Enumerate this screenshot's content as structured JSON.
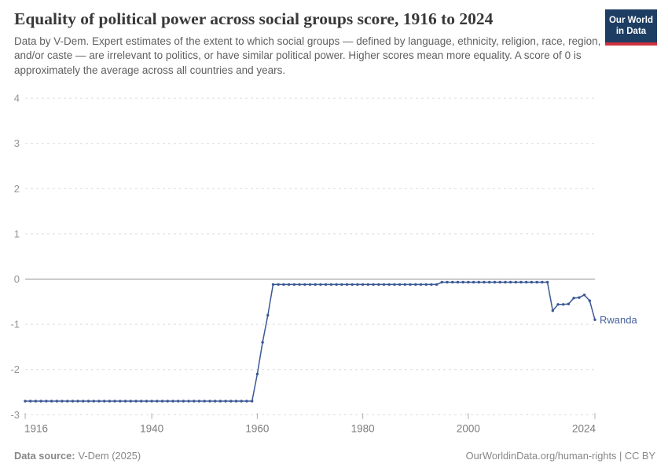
{
  "header": {
    "title": "Equality of political power across social groups score, 1916 to 2024",
    "subtitle": "Data by V-Dem. Expert estimates of the extent to which social groups — defined by language, ethnicity, religion, race, region, and/or caste — are irrelevant to politics, or have similar political power. Higher scores mean more equality. A score of 0 is approximately the average across all countries and years.",
    "logo": {
      "line1": "Our World",
      "line2": "in Data"
    }
  },
  "footer": {
    "source_label": "Data source:",
    "source_value": "V-Dem (2025)",
    "right_text": "OurWorldinData.org/human-rights | CC BY"
  },
  "colors": {
    "line": "#3a5795",
    "end_label": "#44619c",
    "grid": "#dcdcdc",
    "zero_line": "#8f8f8f",
    "y_axis_text": "#949494",
    "x_axis_text": "#7d7d7d",
    "tick_mark": "#adadad"
  },
  "chart_data": {
    "type": "line",
    "title": "Equality of political power across social groups score, 1916 to 2024",
    "xlabel": "",
    "ylabel": "",
    "xlim": [
      1916,
      2024
    ],
    "ylim": [
      -3,
      4
    ],
    "x_ticks": [
      1916,
      1940,
      1960,
      1980,
      2000,
      2024
    ],
    "y_ticks": [
      4,
      3,
      2,
      1,
      0,
      -1,
      -2,
      -3
    ],
    "grid": "horizontal-dashed",
    "legend_position": "end-of-line",
    "series": [
      {
        "name": "Rwanda",
        "points": [
          [
            1916,
            -2.7
          ],
          [
            1917,
            -2.7
          ],
          [
            1918,
            -2.7
          ],
          [
            1919,
            -2.7
          ],
          [
            1920,
            -2.7
          ],
          [
            1921,
            -2.7
          ],
          [
            1922,
            -2.7
          ],
          [
            1923,
            -2.7
          ],
          [
            1924,
            -2.7
          ],
          [
            1925,
            -2.7
          ],
          [
            1926,
            -2.7
          ],
          [
            1927,
            -2.7
          ],
          [
            1928,
            -2.7
          ],
          [
            1929,
            -2.7
          ],
          [
            1930,
            -2.7
          ],
          [
            1931,
            -2.7
          ],
          [
            1932,
            -2.7
          ],
          [
            1933,
            -2.7
          ],
          [
            1934,
            -2.7
          ],
          [
            1935,
            -2.7
          ],
          [
            1936,
            -2.7
          ],
          [
            1937,
            -2.7
          ],
          [
            1938,
            -2.7
          ],
          [
            1939,
            -2.7
          ],
          [
            1940,
            -2.7
          ],
          [
            1941,
            -2.7
          ],
          [
            1942,
            -2.7
          ],
          [
            1943,
            -2.7
          ],
          [
            1944,
            -2.7
          ],
          [
            1945,
            -2.7
          ],
          [
            1946,
            -2.7
          ],
          [
            1947,
            -2.7
          ],
          [
            1948,
            -2.7
          ],
          [
            1949,
            -2.7
          ],
          [
            1950,
            -2.7
          ],
          [
            1951,
            -2.7
          ],
          [
            1952,
            -2.7
          ],
          [
            1953,
            -2.7
          ],
          [
            1954,
            -2.7
          ],
          [
            1955,
            -2.7
          ],
          [
            1956,
            -2.7
          ],
          [
            1957,
            -2.7
          ],
          [
            1958,
            -2.7
          ],
          [
            1959,
            -2.7
          ],
          [
            1960,
            -2.1
          ],
          [
            1961,
            -1.4
          ],
          [
            1962,
            -0.8
          ],
          [
            1963,
            -0.12
          ],
          [
            1964,
            -0.12
          ],
          [
            1965,
            -0.12
          ],
          [
            1966,
            -0.12
          ],
          [
            1967,
            -0.12
          ],
          [
            1968,
            -0.12
          ],
          [
            1969,
            -0.12
          ],
          [
            1970,
            -0.12
          ],
          [
            1971,
            -0.12
          ],
          [
            1972,
            -0.12
          ],
          [
            1973,
            -0.12
          ],
          [
            1974,
            -0.12
          ],
          [
            1975,
            -0.12
          ],
          [
            1976,
            -0.12
          ],
          [
            1977,
            -0.12
          ],
          [
            1978,
            -0.12
          ],
          [
            1979,
            -0.12
          ],
          [
            1980,
            -0.12
          ],
          [
            1981,
            -0.12
          ],
          [
            1982,
            -0.12
          ],
          [
            1983,
            -0.12
          ],
          [
            1984,
            -0.12
          ],
          [
            1985,
            -0.12
          ],
          [
            1986,
            -0.12
          ],
          [
            1987,
            -0.12
          ],
          [
            1988,
            -0.12
          ],
          [
            1989,
            -0.12
          ],
          [
            1990,
            -0.12
          ],
          [
            1991,
            -0.12
          ],
          [
            1992,
            -0.12
          ],
          [
            1993,
            -0.12
          ],
          [
            1994,
            -0.12
          ],
          [
            1995,
            -0.07
          ],
          [
            1996,
            -0.07
          ],
          [
            1997,
            -0.07
          ],
          [
            1998,
            -0.07
          ],
          [
            1999,
            -0.07
          ],
          [
            2000,
            -0.07
          ],
          [
            2001,
            -0.07
          ],
          [
            2002,
            -0.07
          ],
          [
            2003,
            -0.07
          ],
          [
            2004,
            -0.07
          ],
          [
            2005,
            -0.07
          ],
          [
            2006,
            -0.07
          ],
          [
            2007,
            -0.07
          ],
          [
            2008,
            -0.07
          ],
          [
            2009,
            -0.07
          ],
          [
            2010,
            -0.07
          ],
          [
            2011,
            -0.07
          ],
          [
            2012,
            -0.07
          ],
          [
            2013,
            -0.07
          ],
          [
            2014,
            -0.07
          ],
          [
            2015,
            -0.07
          ],
          [
            2016,
            -0.7
          ],
          [
            2017,
            -0.56
          ],
          [
            2018,
            -0.56
          ],
          [
            2019,
            -0.55
          ],
          [
            2020,
            -0.42
          ],
          [
            2021,
            -0.41
          ],
          [
            2022,
            -0.35
          ],
          [
            2023,
            -0.48
          ],
          [
            2024,
            -0.9
          ]
        ]
      }
    ]
  }
}
